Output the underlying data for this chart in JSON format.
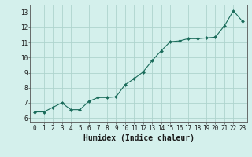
{
  "x": [
    0,
    1,
    2,
    3,
    4,
    5,
    6,
    7,
    8,
    9,
    10,
    11,
    12,
    13,
    14,
    15,
    16,
    17,
    18,
    19,
    20,
    21,
    22,
    23
  ],
  "y": [
    6.4,
    6.4,
    6.7,
    7.0,
    6.55,
    6.55,
    7.1,
    7.35,
    7.35,
    7.4,
    8.2,
    8.6,
    9.05,
    9.8,
    10.45,
    11.05,
    11.1,
    11.25,
    11.25,
    11.3,
    11.35,
    12.1,
    13.1,
    12.4
  ],
  "line_color": "#1a6b5a",
  "marker": "D",
  "marker_size": 2.0,
  "bg_color": "#d4f0ec",
  "grid_color": "#aed4ce",
  "xlabel": "Humidex (Indice chaleur)",
  "ylim": [
    5.7,
    13.5
  ],
  "xlim": [
    -0.5,
    23.5
  ],
  "yticks": [
    6,
    7,
    8,
    9,
    10,
    11,
    12,
    13
  ],
  "xticks": [
    0,
    1,
    2,
    3,
    4,
    5,
    6,
    7,
    8,
    9,
    10,
    11,
    12,
    13,
    14,
    15,
    16,
    17,
    18,
    19,
    20,
    21,
    22,
    23
  ],
  "tick_label_size": 5.5,
  "xlabel_size": 7.0
}
